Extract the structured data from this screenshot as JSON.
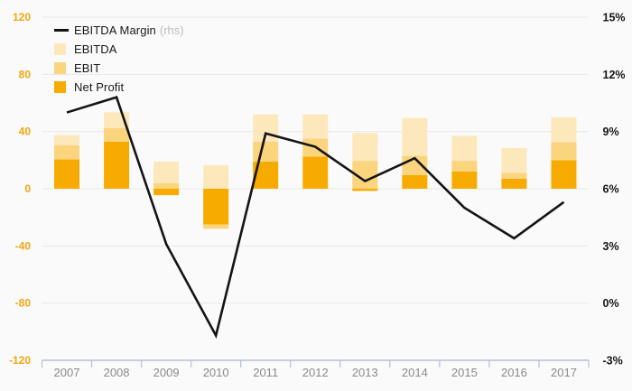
{
  "page": {
    "background": "#fafafa",
    "gridline_color": "#e8e8e8",
    "axisline_color": "#b7c0d6",
    "text_gray": "#8a8a8a"
  },
  "legend": {
    "items": [
      {
        "label": "EBITDA Margin",
        "suffix": "(rhs)",
        "type": "line",
        "color": "#141414"
      },
      {
        "label": "EBITDA",
        "type": "swatch",
        "color": "#fde8bc"
      },
      {
        "label": "EBIT",
        "type": "swatch",
        "color": "#fbd47e"
      },
      {
        "label": "Net Profit",
        "type": "swatch",
        "color": "#f7ab00"
      }
    ]
  },
  "chart_data": {
    "type": "combo-stacked-bar-line",
    "categories": [
      "2007",
      "2008",
      "2009",
      "2010",
      "2011",
      "2012",
      "2013",
      "2014",
      "2015",
      "2016",
      "2017"
    ],
    "bar_series": [
      {
        "name": "Net Profit",
        "color": "#f7ab00",
        "values": [
          20.5,
          33,
          -4.5,
          -25,
          19,
          22.5,
          -1.5,
          9.5,
          12,
          7,
          20
        ]
      },
      {
        "name": "EBIT",
        "color": "#fbd47e",
        "values": [
          10,
          9.5,
          4,
          -3,
          14,
          12.5,
          19.5,
          13.5,
          7.5,
          4,
          12.5
        ]
      },
      {
        "name": "EBITDA",
        "color": "#fde8bc",
        "values": [
          7,
          11,
          15,
          16.5,
          19,
          17,
          19.5,
          26.5,
          17.5,
          17.5,
          17.5
        ]
      }
    ],
    "line_series": {
      "name": "EBITDA Margin (rhs)",
      "color": "#141414",
      "axis": "right",
      "values": [
        10.0,
        10.8,
        3.1,
        -1.7,
        8.9,
        8.2,
        6.4,
        7.6,
        5.0,
        3.4,
        5.3
      ]
    },
    "left_axis": {
      "ticks": [
        "120",
        "80",
        "40",
        "0",
        "-40",
        "-80",
        "-120"
      ],
      "values": [
        120,
        80,
        40,
        0,
        -40,
        -80,
        -120
      ],
      "range": [
        -120,
        120
      ],
      "color": "#f2a50f"
    },
    "right_axis": {
      "ticks": [
        "15%",
        "12%",
        "9%",
        "6%",
        "3%",
        "0%",
        "-3%"
      ],
      "values": [
        15,
        12,
        9,
        6,
        3,
        0,
        -3
      ],
      "range": [
        -3,
        15
      ],
      "color": "#171717"
    },
    "grid": true,
    "legend_position": "top-left",
    "title": "",
    "xlabel": "",
    "ylabel": ""
  }
}
